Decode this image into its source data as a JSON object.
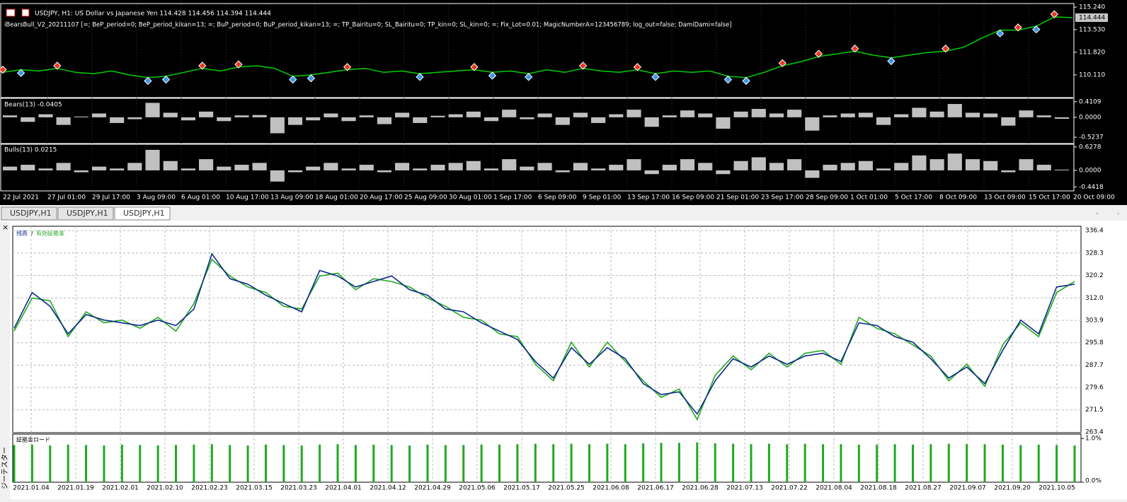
{
  "chart": {
    "title": "USDJPY, H1:  US Dollar vs Japanese Yen  114.428 114.456 114.394 114.444",
    "expert": "iBearsBull_V2_20211107 [=; BeP_period=0; BeP_period_kikan=13; =; BuP_period=0; BuP_period_kikan=13; =; TP_Bairitu=0; SL_Bairitu=0; TP_kin=0; SL_kin=0; =; Fix_Lot=0.01; MagicNumberA=123456789; log_out=false; DamiDami=false]",
    "price": {
      "color": "#00d000",
      "ylim": [
        108.44,
        115.46
      ],
      "yticks": [
        {
          "value": 115.24,
          "label": "115.240"
        },
        {
          "value": 113.53,
          "label": "113.530"
        },
        {
          "value": 111.82,
          "label": "111.820"
        },
        {
          "value": 110.11,
          "label": "110.110"
        }
      ],
      "last": {
        "value": 114.444,
        "label": "114.444"
      },
      "values": [
        110.3,
        110.5,
        110.4,
        110.6,
        110.3,
        110.2,
        110.4,
        110.1,
        109.9,
        110.0,
        110.3,
        110.6,
        110.4,
        110.7,
        110.8,
        110.6,
        110.0,
        110.1,
        110.3,
        110.5,
        110.6,
        110.3,
        110.4,
        110.2,
        110.3,
        110.4,
        110.5,
        110.3,
        110.4,
        110.2,
        110.5,
        110.3,
        110.6,
        110.4,
        110.3,
        110.5,
        110.2,
        110.4,
        110.3,
        110.4,
        110.0,
        109.9,
        110.3,
        110.8,
        111.1,
        111.5,
        111.7,
        111.9,
        111.6,
        111.4,
        111.6,
        111.8,
        111.9,
        112.2,
        112.9,
        113.5,
        113.5,
        113.8,
        114.5,
        114.444
      ]
    },
    "sell_signals": {
      "color": "#e83a20",
      "x": [
        0,
        3,
        11,
        13,
        19,
        26,
        32,
        35,
        43,
        45,
        47,
        52,
        56,
        58
      ],
      "values": [
        110.5,
        110.8,
        110.8,
        110.9,
        110.7,
        110.7,
        110.8,
        110.7,
        111.0,
        111.7,
        112.1,
        112.1,
        113.7,
        114.7
      ]
    },
    "buy_signals": {
      "color": "#3a96e8",
      "x": [
        1,
        8,
        9,
        16,
        17,
        23,
        27,
        29,
        36,
        40,
        41,
        49,
        55,
        57
      ],
      "values": [
        110.25,
        109.65,
        109.75,
        109.75,
        109.85,
        109.95,
        110.05,
        109.95,
        109.95,
        109.75,
        109.65,
        111.15,
        113.25,
        113.55
      ]
    },
    "bears": {
      "label": "Bears(13) -0.0405",
      "color": "#c0c0c0",
      "ylim": [
        -0.69,
        0.5
      ],
      "yticks": [
        0.4109,
        {
          "value": 0,
          "label": "0.0000"
        },
        -0.5237
      ],
      "values": [
        0.05,
        -0.12,
        0.08,
        -0.2,
        0.02,
        0.1,
        -0.15,
        -0.05,
        0.38,
        0.12,
        -0.08,
        0.15,
        -0.1,
        0.05,
        0.06,
        -0.42,
        -0.2,
        -0.08,
        0.1,
        -0.1,
        0.05,
        -0.18,
        0.12,
        -0.15,
        0.04,
        0.08,
        0.15,
        -0.1,
        0.2,
        -0.05,
        0.1,
        -0.2,
        0.12,
        -0.15,
        0.08,
        0.2,
        -0.25,
        0.05,
        0.18,
        0.1,
        -0.3,
        0.15,
        0.22,
        0.1,
        0.2,
        -0.35,
        0.05,
        0.1,
        0.12,
        -0.2,
        0.08,
        0.25,
        0.15,
        0.35,
        0.12,
        0.1,
        -0.22,
        0.18,
        0.05,
        -0.04
      ]
    },
    "bulls": {
      "label": "Bulls(13) 0.0215",
      "color": "#c0c0c0",
      "ylim": [
        -0.55,
        0.7
      ],
      "yticks": [
        0.6278,
        {
          "value": 0,
          "label": "0.0000"
        },
        -0.4418
      ],
      "values": [
        0.1,
        0.15,
        0.05,
        0.2,
        -0.05,
        0.1,
        0.05,
        0.2,
        0.55,
        0.25,
        0.05,
        0.3,
        0.1,
        0.15,
        0.2,
        -0.3,
        -0.05,
        0.1,
        0.2,
        0.05,
        0.15,
        -0.05,
        0.2,
        0.05,
        0.15,
        0.2,
        0.25,
        0.05,
        0.3,
        0.1,
        0.2,
        -0.05,
        0.2,
        0.05,
        0.15,
        0.3,
        -0.1,
        0.15,
        0.3,
        0.2,
        -0.1,
        0.25,
        0.35,
        0.2,
        0.3,
        -0.2,
        0.15,
        0.2,
        0.25,
        0.05,
        0.2,
        0.4,
        0.3,
        0.45,
        0.3,
        0.25,
        -0.05,
        0.3,
        0.15,
        0.02
      ]
    },
    "x_labels": [
      "22 Jul 2021",
      "27 Jul 01:00",
      "29 Jul 17:00",
      "3 Aug 09:00",
      "6 Aug 01:00",
      "10 Aug 17:00",
      "13 Aug 09:00",
      "18 Aug 01:00",
      "20 Aug 17:00",
      "25 Aug 09:00",
      "30 Aug 01:00",
      "1 Sep 17:00",
      "6 Sep 09:00",
      "9 Sep 01:00",
      "13 Sep 17:00",
      "16 Sep 09:00",
      "21 Sep 01:00",
      "23 Sep 17:00",
      "28 Sep 09:00",
      "1 Oct 01:00",
      "5 Oct 17:00",
      "8 Oct 09:00",
      "13 Oct 09:00",
      "15 Oct 17:00",
      "20 Oct 09:00"
    ]
  },
  "tabs": [
    "USDJPY,H1",
    "USDJPY,H1",
    "USDJPY,H1"
  ],
  "tester": {
    "side_label": "ジーテスター",
    "legend_balance": "残高",
    "legend_separator": "/",
    "legend_equity": "有効証拠金",
    "ylim": [
      263.2,
      338.0
    ],
    "yticks": [
      336.4,
      328.3,
      320.2,
      {
        "value": 312,
        "label": "312.0"
      },
      303.9,
      295.8,
      287.7,
      279.6,
      271.5,
      263.4
    ],
    "balance": {
      "color": "#0c2a8c",
      "values": [
        301,
        314,
        309,
        299,
        306,
        304,
        303,
        302,
        304,
        302,
        308,
        328,
        319,
        317,
        313,
        310,
        307,
        322,
        320,
        316,
        318,
        320,
        315,
        313,
        308,
        307,
        303,
        300,
        297,
        289,
        283,
        294,
        288,
        294,
        290,
        281,
        277,
        278,
        270,
        282,
        290,
        287,
        291,
        288,
        291,
        292,
        289,
        303,
        302,
        298,
        296,
        290,
        283,
        287,
        281,
        293,
        304,
        299,
        316,
        317
      ]
    },
    "equity": {
      "color": "#22a822",
      "values": [
        300,
        312,
        311,
        298,
        307,
        303,
        304,
        301,
        305,
        300,
        310,
        326,
        320,
        316,
        314,
        309,
        308,
        320,
        321,
        315,
        319,
        318,
        316,
        312,
        309,
        305,
        304,
        299,
        298,
        288,
        282,
        296,
        287,
        296,
        289,
        282,
        276,
        279,
        268,
        284,
        291,
        286,
        292,
        287,
        292,
        293,
        288,
        305,
        301,
        299,
        295,
        291,
        282,
        288,
        280,
        295,
        303,
        298,
        314,
        318
      ]
    },
    "margin": {
      "label": "証拠金ロード",
      "color": "#22a822",
      "ylim": [
        0,
        1.1
      ],
      "yticks": [
        {
          "value": 1,
          "label": "1.0%"
        },
        {
          "value": 0,
          "label": "0.0%"
        }
      ],
      "values": [
        0.85,
        0.86,
        0.84,
        0.86,
        0.85,
        0.84,
        0.86,
        0.85,
        0.84,
        0.85,
        0.86,
        0.87,
        0.85,
        0.84,
        0.86,
        0.85,
        0.84,
        0.86,
        0.87,
        0.85,
        0.86,
        0.85,
        0.84,
        0.86,
        0.85,
        0.85,
        0.86,
        0.86,
        0.87,
        0.88,
        0.87,
        0.88,
        0.87,
        0.88,
        0.87,
        0.89,
        0.9,
        0.9,
        0.91,
        0.89,
        0.88,
        0.87,
        0.88,
        0.87,
        0.88,
        0.87,
        0.87,
        0.86,
        0.86,
        0.87,
        0.86,
        0.87,
        0.88,
        0.87,
        0.87,
        0.86,
        0.85,
        0.86,
        0.85,
        0.84
      ]
    },
    "x_labels": [
      "2021.01.04",
      "2021.01.19",
      "2021.02.01",
      "2021.02.10",
      "2021.02.23",
      "2021.03.15",
      "2021.03.23",
      "2021.04.01",
      "2021.04.12",
      "2021.04.29",
      "2021.05.06",
      "2021.05.17",
      "2021.05.25",
      "2021.06.08",
      "2021.06.17",
      "2021.06.28",
      "2021.07.13",
      "2021.07.22",
      "2021.08.04",
      "2021.08.18",
      "2021.08.27",
      "2021.09.07",
      "2021.09.20",
      "2021.10.05"
    ]
  }
}
